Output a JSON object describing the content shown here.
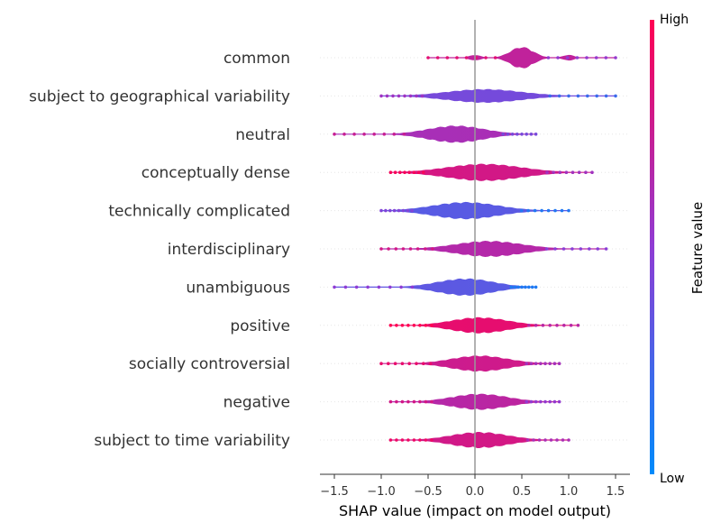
{
  "chart_data": {
    "type": "violin",
    "title": "",
    "xlabel": "SHAP value (impact on model output)",
    "xlim": [
      -1.65,
      1.65
    ],
    "xticks": [
      -1.5,
      -1.0,
      -0.5,
      0.0,
      0.5,
      1.0,
      1.5
    ],
    "xtick_labels": [
      "−1.5",
      "−1.0",
      "−0.5",
      "0.0",
      "0.5",
      "1.0",
      "1.5"
    ],
    "grid": true,
    "colorbar": {
      "title": "Feature value",
      "high_label": "High",
      "low_label": "Low",
      "low_color": "#008bfb",
      "high_color": "#ff0052"
    },
    "features": [
      {
        "name": "common",
        "center": 0.5,
        "spread": 0.12,
        "peak": 0.95,
        "secondary": [
          0.0,
          1.0
        ],
        "range": [
          -0.5,
          1.5
        ],
        "color_low": 0.72,
        "color_high": 0.72
      },
      {
        "name": "subject to geographical variability",
        "center": 0.1,
        "spread": 0.4,
        "peak": 0.6,
        "secondary": [],
        "range": [
          -1.0,
          1.5
        ],
        "color_low": 0.42,
        "color_high": 0.4
      },
      {
        "name": "neutral",
        "center": -0.2,
        "spread": 0.3,
        "peak": 0.75,
        "secondary": [],
        "range": [
          -1.5,
          0.65
        ],
        "color_low": 0.6,
        "color_high": 0.62
      },
      {
        "name": "conceptually dense",
        "center": 0.1,
        "spread": 0.4,
        "peak": 0.75,
        "secondary": [],
        "range": [
          -0.9,
          1.25
        ],
        "color_low": 0.82,
        "color_high": 0.78
      },
      {
        "name": "technically complicated",
        "center": -0.1,
        "spread": 0.35,
        "peak": 0.75,
        "secondary": [],
        "range": [
          -1.0,
          1.0
        ],
        "color_low": 0.3,
        "color_high": 0.32
      },
      {
        "name": "interdisciplinary",
        "center": 0.15,
        "spread": 0.35,
        "peak": 0.7,
        "secondary": [],
        "range": [
          -1.0,
          1.4
        ],
        "color_low": 0.65,
        "color_high": 0.68
      },
      {
        "name": "unambiguous",
        "center": -0.1,
        "spread": 0.3,
        "peak": 0.75,
        "secondary": [],
        "range": [
          -1.5,
          0.65
        ],
        "color_low": 0.35,
        "color_high": 0.3
      },
      {
        "name": "positive",
        "center": 0.05,
        "spread": 0.3,
        "peak": 0.7,
        "secondary": [],
        "range": [
          -0.9,
          1.1
        ],
        "color_low": 0.9,
        "color_high": 0.88
      },
      {
        "name": "socially controversial",
        "center": 0.05,
        "spread": 0.3,
        "peak": 0.7,
        "secondary": [],
        "range": [
          -1.0,
          0.9
        ],
        "color_low": 0.75,
        "color_high": 0.8
      },
      {
        "name": "negative",
        "center": 0.05,
        "spread": 0.3,
        "peak": 0.7,
        "secondary": [],
        "range": [
          -0.9,
          0.9
        ],
        "color_low": 0.65,
        "color_high": 0.72
      },
      {
        "name": "subject to time variability",
        "center": 0.05,
        "spread": 0.3,
        "peak": 0.7,
        "secondary": [],
        "range": [
          -0.9,
          1.0
        ],
        "color_low": 0.78,
        "color_high": 0.82
      }
    ]
  }
}
